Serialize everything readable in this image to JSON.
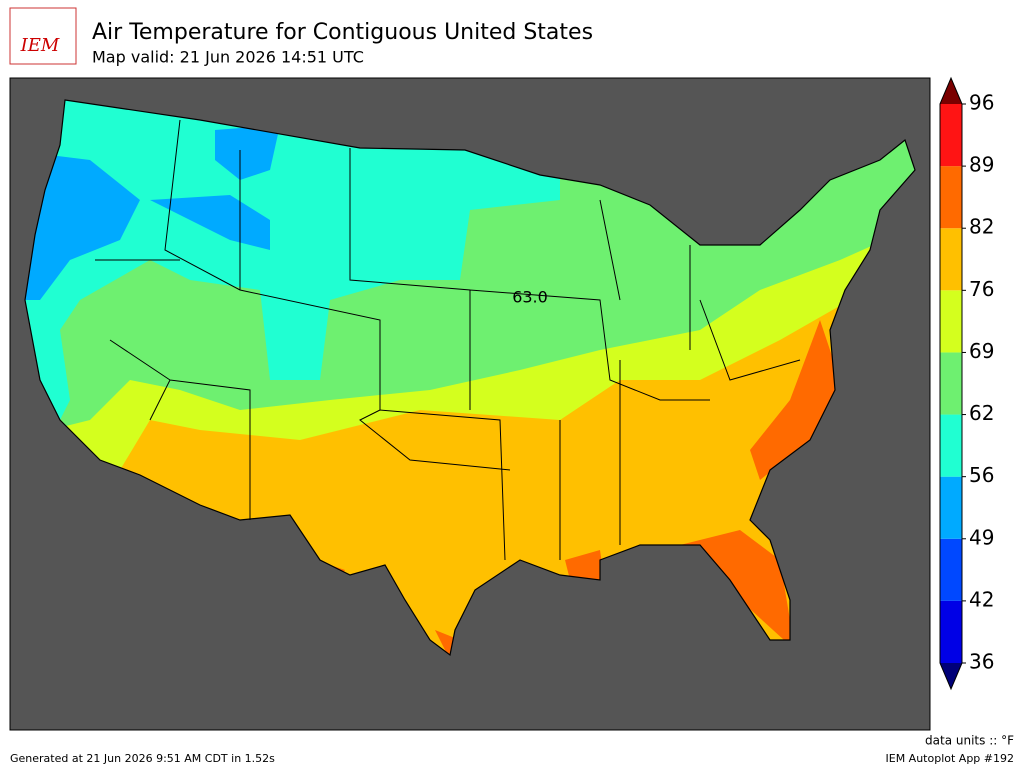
{
  "header": {
    "logo": "IEM",
    "title": "Air Temperature for Contiguous United States",
    "subtitle": "Map valid: 21 Jun 2026 14:51 UTC"
  },
  "map": {
    "label": "63.0"
  },
  "colorbar": {
    "ticks": [
      36,
      42,
      49,
      56,
      62,
      69,
      76,
      82,
      89,
      96
    ],
    "colors": [
      "#0000e6",
      "#0048ff",
      "#00aaff",
      "#20ffd2",
      "#6ef070",
      "#d4ff1e",
      "#ffc000",
      "#ff6a00",
      "#ff1414"
    ],
    "under_color": "#000078",
    "over_color": "#7a0000"
  },
  "footer": {
    "generated": "Generated at 21 Jun 2026 9:51 AM CDT in 1.52s",
    "units": "data units :: °F",
    "app": "IEM Autoplot App #192"
  }
}
